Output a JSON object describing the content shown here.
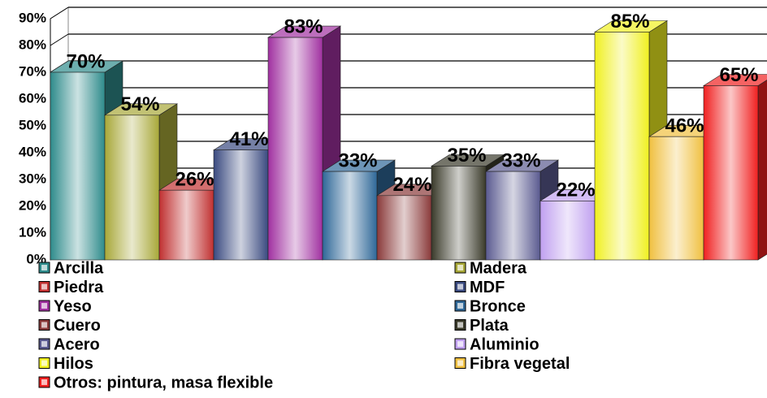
{
  "chart_data": {
    "type": "bar3d",
    "series": [
      {
        "name": "Arcilla",
        "color": "#2e8b8b",
        "values": [
          70
        ],
        "value_labels": [
          "70%"
        ]
      },
      {
        "name": "Madera",
        "color": "#a8a838",
        "values": [
          54
        ],
        "value_labels": [
          "54%"
        ]
      },
      {
        "name": "Piedra",
        "color": "#c03030",
        "values": [
          26
        ],
        "value_labels": [
          "26%"
        ]
      },
      {
        "name": "MDF",
        "color": "#3a4a80",
        "values": [
          41
        ],
        "value_labels": [
          "41%"
        ]
      },
      {
        "name": "Yeso",
        "color": "#a030a0",
        "values": [
          83
        ],
        "value_labels": [
          "83%"
        ]
      },
      {
        "name": "Bronce",
        "color": "#2f6898",
        "values": [
          33
        ],
        "value_labels": [
          "33%"
        ]
      },
      {
        "name": "Cuero",
        "color": "#8a3a3a",
        "values": [
          24
        ],
        "value_labels": [
          "24%"
        ]
      },
      {
        "name": "Plata",
        "color": "#3a3a2a",
        "values": [
          35
        ],
        "value_labels": [
          "35%"
        ]
      },
      {
        "name": "Acero",
        "color": "#5a5a90",
        "values": [
          33
        ],
        "value_labels": [
          "33%"
        ]
      },
      {
        "name": "Aluminio",
        "color": "#c0a0f0",
        "values": [
          22
        ],
        "value_labels": [
          "22%"
        ]
      },
      {
        "name": "Hilos",
        "color": "#f0f020",
        "values": [
          85
        ],
        "value_labels": [
          "85%"
        ]
      },
      {
        "name": "Fibra vegetal",
        "color": "#f0c040",
        "values": [
          46
        ],
        "value_labels": [
          "46%"
        ]
      },
      {
        "name": "Otros: pintura, masa flexible",
        "color": "#f02020",
        "values": [
          65
        ],
        "value_labels": [
          "65%"
        ]
      }
    ],
    "ylim": [
      0,
      90
    ],
    "yticks": [
      {
        "value": 0,
        "label": "0%"
      },
      {
        "value": 10,
        "label": "10%"
      },
      {
        "value": 20,
        "label": "20%"
      },
      {
        "value": 30,
        "label": "30%"
      },
      {
        "value": 40,
        "label": "40%"
      },
      {
        "value": 50,
        "label": "50%"
      },
      {
        "value": 60,
        "label": "60%"
      },
      {
        "value": 70,
        "label": "70%"
      },
      {
        "value": 80,
        "label": "80%"
      },
      {
        "value": 90,
        "label": "90%"
      }
    ],
    "grid": true
  }
}
